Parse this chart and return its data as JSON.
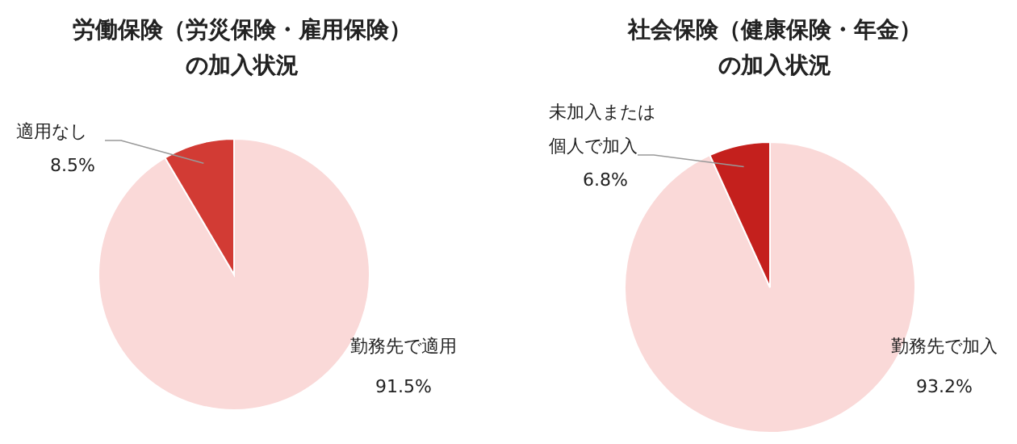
{
  "chart_data": [
    {
      "type": "pie",
      "title": "労働保険（労災保険・雇用保険）の加入状況",
      "categories": [
        "勤務先で適用",
        "適用なし"
      ],
      "values": [
        91.5,
        8.5
      ],
      "colors": [
        "#fad9d8",
        "#d23b34"
      ],
      "value_labels": [
        "91.5%",
        "8.5%"
      ]
    },
    {
      "type": "pie",
      "title": "社会保険（健康保険・年金）の加入状況",
      "categories": [
        "勤務先で加入",
        "未加入または個人で加入"
      ],
      "values": [
        93.2,
        6.8
      ],
      "colors": [
        "#fad9d8",
        "#c4201d"
      ],
      "value_labels": [
        "93.2%",
        "6.8%"
      ]
    }
  ]
}
